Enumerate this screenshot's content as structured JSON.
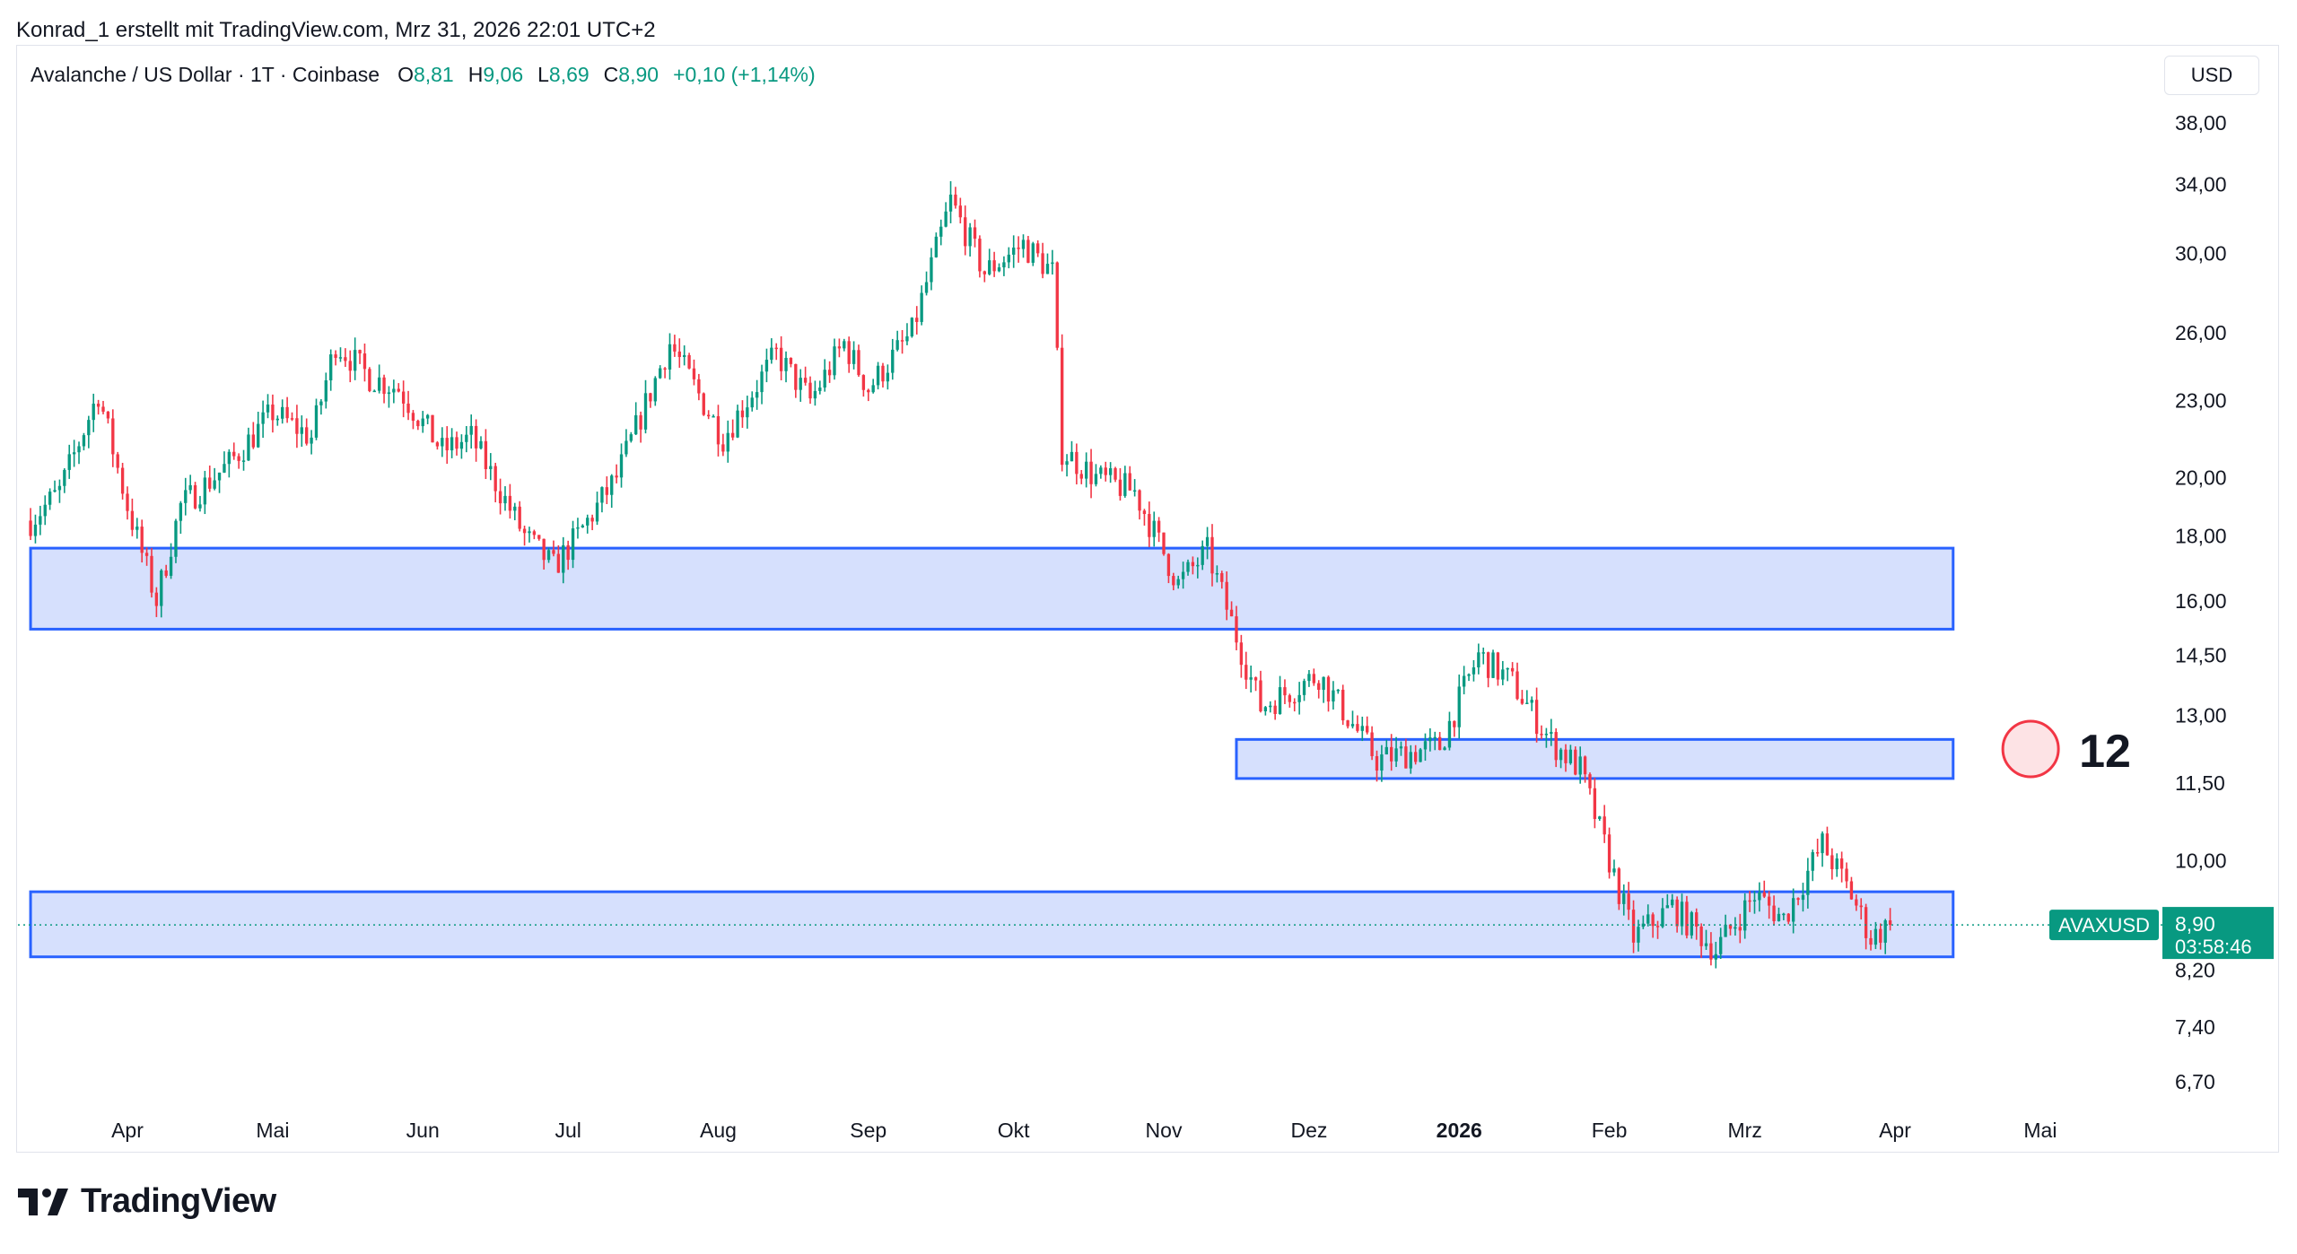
{
  "header": {
    "credit": "Konrad_1 erstellt mit TradingView.com, Mrz 31, 2026 22:01 UTC+2"
  },
  "legend": {
    "symbol": "Avalanche / US Dollar · 1T · Coinbase",
    "o_label": "O",
    "o_value": "8,81",
    "h_label": "H",
    "h_value": "9,06",
    "l_label": "L",
    "l_value": "8,69",
    "c_label": "C",
    "c_value": "8,90",
    "change": "+0,10 (+1,14%)"
  },
  "currency_button": "USD",
  "price_tag": {
    "ticker": "AVAXUSD",
    "price": "8,90",
    "countdown": "03:58:46"
  },
  "annotation": {
    "label": "12"
  },
  "brand": {
    "name": "TradingView"
  },
  "colors": {
    "up": "#089981",
    "down": "#f23645",
    "zone_fill": "#d4defd",
    "zone_border": "#2962ff",
    "marker_fill": "#fde3e5",
    "marker_stroke": "#f23645"
  },
  "chart_data": {
    "type": "candlestick",
    "scale": "log",
    "y_ticks": [
      "38,00",
      "34,00",
      "30,00",
      "26,00",
      "23,00",
      "20,00",
      "18,00",
      "16,00",
      "14,50",
      "13,00",
      "11,50",
      "10,00",
      "8,20",
      "7,40",
      "6,70"
    ],
    "y_tick_values": [
      38,
      34,
      30,
      26,
      23,
      20,
      18,
      16,
      14.5,
      13,
      11.5,
      10,
      8.2,
      7.4,
      6.7
    ],
    "x_ticks": [
      {
        "label": "Apr",
        "date": "2025-04-01"
      },
      {
        "label": "Mai",
        "date": "2025-05-01"
      },
      {
        "label": "Jun",
        "date": "2025-06-01"
      },
      {
        "label": "Jul",
        "date": "2025-07-01"
      },
      {
        "label": "Aug",
        "date": "2025-08-01"
      },
      {
        "label": "Sep",
        "date": "2025-09-01"
      },
      {
        "label": "Okt",
        "date": "2025-10-01"
      },
      {
        "label": "Nov",
        "date": "2025-11-01"
      },
      {
        "label": "Dez",
        "date": "2025-12-01"
      },
      {
        "label": "2026",
        "date": "2026-01-01",
        "bold": true
      },
      {
        "label": "Feb",
        "date": "2026-02-01"
      },
      {
        "label": "Mrz",
        "date": "2026-03-01"
      },
      {
        "label": "Apr",
        "date": "2026-04-01"
      },
      {
        "label": "Mai",
        "date": "2026-05-01"
      }
    ],
    "zones": [
      {
        "from_date": "2025-03-12",
        "to_date": "2026-04-13",
        "low": 15.2,
        "high": 17.6
      },
      {
        "from_date": "2025-11-16",
        "to_date": "2026-04-13",
        "low": 11.6,
        "high": 12.45
      },
      {
        "from_date": "2025-03-12",
        "to_date": "2026-04-13",
        "low": 8.4,
        "high": 9.45
      }
    ],
    "marker": {
      "date": "2026-04-29",
      "price": 12.0
    },
    "last_price": 8.9,
    "path": [
      {
        "date": "2025-03-12",
        "price": 18.5
      },
      {
        "date": "2025-03-18",
        "price": 19.5
      },
      {
        "date": "2025-03-26",
        "price": 23.3
      },
      {
        "date": "2025-04-01",
        "price": 19.0
      },
      {
        "date": "2025-04-07",
        "price": 16.0
      },
      {
        "date": "2025-04-12",
        "price": 19.0
      },
      {
        "date": "2025-04-22",
        "price": 20.5
      },
      {
        "date": "2025-05-01",
        "price": 22.5
      },
      {
        "date": "2025-05-09",
        "price": 21.5
      },
      {
        "date": "2025-05-14",
        "price": 25.5
      },
      {
        "date": "2025-05-21",
        "price": 24.0
      },
      {
        "date": "2025-05-27",
        "price": 23.5
      },
      {
        "date": "2025-06-05",
        "price": 21.0
      },
      {
        "date": "2025-06-11",
        "price": 21.5
      },
      {
        "date": "2025-06-22",
        "price": 18.0
      },
      {
        "date": "2025-06-28",
        "price": 17.0
      },
      {
        "date": "2025-07-03",
        "price": 18.0
      },
      {
        "date": "2025-07-11",
        "price": 20.0
      },
      {
        "date": "2025-07-22",
        "price": 25.5
      },
      {
        "date": "2025-08-02",
        "price": 21.5
      },
      {
        "date": "2025-08-13",
        "price": 25.0
      },
      {
        "date": "2025-08-20",
        "price": 23.0
      },
      {
        "date": "2025-08-27",
        "price": 25.5
      },
      {
        "date": "2025-09-01",
        "price": 23.5
      },
      {
        "date": "2025-09-10",
        "price": 26.0
      },
      {
        "date": "2025-09-18",
        "price": 33.0
      },
      {
        "date": "2025-09-25",
        "price": 29.0
      },
      {
        "date": "2025-10-03",
        "price": 30.5
      },
      {
        "date": "2025-10-09",
        "price": 29.0
      },
      {
        "date": "2025-10-11",
        "price": 21.0
      },
      {
        "date": "2025-10-18",
        "price": 20.0
      },
      {
        "date": "2025-10-26",
        "price": 19.5
      },
      {
        "date": "2025-11-04",
        "price": 16.5
      },
      {
        "date": "2025-11-10",
        "price": 17.5
      },
      {
        "date": "2025-11-21",
        "price": 13.2
      },
      {
        "date": "2025-12-03",
        "price": 14.0
      },
      {
        "date": "2025-12-15",
        "price": 12.0
      },
      {
        "date": "2025-12-28",
        "price": 12.3
      },
      {
        "date": "2026-01-05",
        "price": 14.5
      },
      {
        "date": "2026-01-12",
        "price": 13.8
      },
      {
        "date": "2026-01-20",
        "price": 12.4
      },
      {
        "date": "2026-01-26",
        "price": 11.8
      },
      {
        "date": "2026-02-01",
        "price": 10.0
      },
      {
        "date": "2026-02-06",
        "price": 8.7
      },
      {
        "date": "2026-02-14",
        "price": 9.2
      },
      {
        "date": "2026-02-23",
        "price": 8.5
      },
      {
        "date": "2026-03-03",
        "price": 9.4
      },
      {
        "date": "2026-03-09",
        "price": 9.0
      },
      {
        "date": "2026-03-17",
        "price": 10.3
      },
      {
        "date": "2026-03-23",
        "price": 9.4
      },
      {
        "date": "2026-03-27",
        "price": 8.7
      },
      {
        "date": "2026-03-31",
        "price": 8.9
      }
    ]
  }
}
